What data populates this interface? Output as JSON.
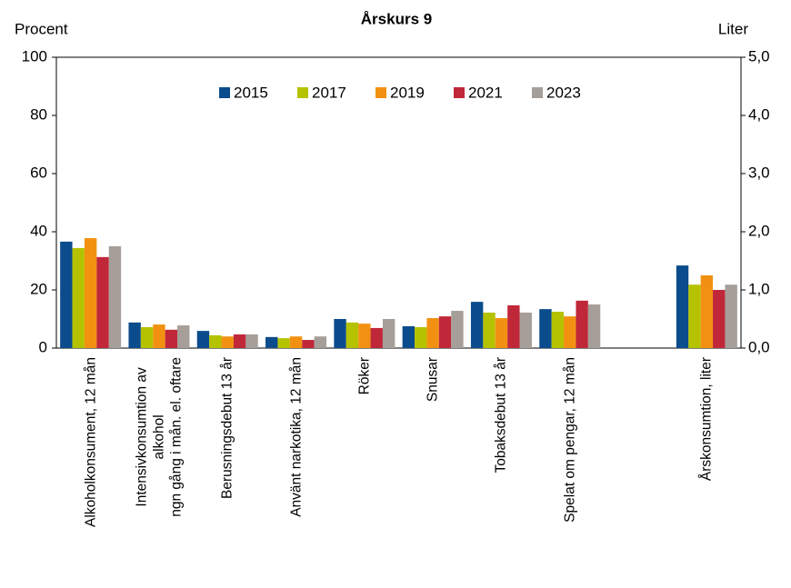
{
  "chart_data": {
    "type": "bar",
    "title": "Årskurs 9",
    "y_label": "Procent",
    "y2_label": "Liter",
    "categories": [
      "Alkoholkonsument, 12 mån",
      "Intensivkonsumtion av\nalkohol\nngn gång i mån. el. oftare",
      "Berusningsdebut 13 år",
      "Använt narkotika, 12 mån",
      "Röker",
      "Snusar",
      "Tobaksdebut 13 år",
      "Spelat om pengar, 12 mån",
      null,
      "Årskonsumtion, liter"
    ],
    "series": [
      {
        "name": "2015",
        "color": "#0b4c8c",
        "values": [
          36.6,
          8.8,
          5.9,
          3.8,
          10,
          7.5,
          15.9,
          13.4,
          null,
          null
        ],
        "y2_values": [
          null,
          null,
          null,
          null,
          null,
          null,
          null,
          null,
          null,
          1.42
        ]
      },
      {
        "name": "2017",
        "color": "#b5c200",
        "values": [
          34.4,
          7.2,
          4.4,
          3.4,
          8.8,
          7.2,
          12.2,
          12.5,
          null,
          null
        ],
        "y2_values": [
          null,
          null,
          null,
          null,
          null,
          null,
          null,
          null,
          null,
          1.09
        ]
      },
      {
        "name": "2019",
        "color": "#f29111",
        "values": [
          37.8,
          8.1,
          4,
          4,
          8.4,
          10.3,
          10.3,
          10.9,
          null,
          null
        ],
        "y2_values": [
          null,
          null,
          null,
          null,
          null,
          null,
          null,
          null,
          null,
          1.25
        ]
      },
      {
        "name": "2021",
        "color": "#c0283a",
        "values": [
          31.3,
          6.3,
          4.7,
          2.8,
          6.9,
          10.9,
          14.7,
          16.3,
          null,
          null
        ],
        "y2_values": [
          null,
          null,
          null,
          null,
          null,
          null,
          null,
          null,
          null,
          1.0
        ]
      },
      {
        "name": "2023",
        "color": "#a69e98",
        "values": [
          35,
          7.8,
          4.7,
          4,
          10,
          12.8,
          12.2,
          15,
          null,
          null
        ],
        "y2_values": [
          null,
          null,
          null,
          null,
          null,
          null,
          null,
          null,
          null,
          1.09
        ]
      }
    ],
    "ylim": [
      0,
      100
    ],
    "yticks": [
      0,
      20,
      40,
      60,
      80,
      100
    ],
    "y2lim": [
      0,
      5
    ],
    "y2ticks": [
      {
        "value": 0,
        "label": "0,0"
      },
      {
        "value": 1,
        "label": "1,0"
      },
      {
        "value": 2,
        "label": "2,0"
      },
      {
        "value": 3,
        "label": "3,0"
      },
      {
        "value": 4,
        "label": "4,0"
      },
      {
        "value": 5,
        "label": "5,0"
      }
    ],
    "legend": "top"
  }
}
